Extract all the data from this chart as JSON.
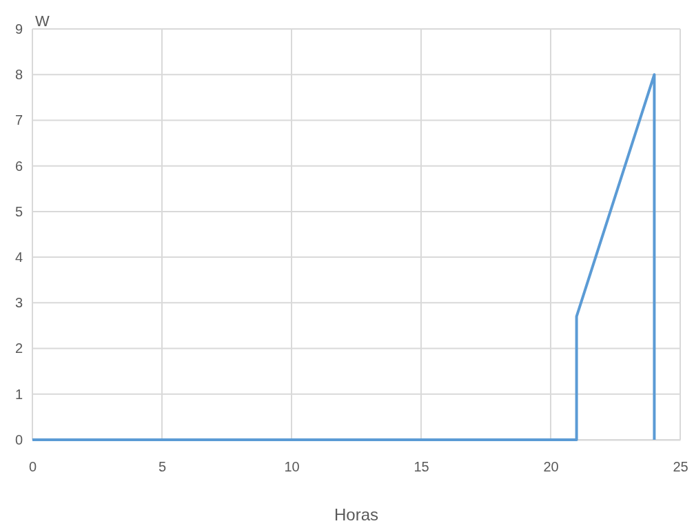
{
  "chart_data": {
    "type": "line",
    "xlabel": "Horas",
    "ylabel": "W",
    "series": [
      {
        "color": "#5b9bd5",
        "x": [
          0,
          21,
          21,
          24,
          24
        ],
        "values": [
          0,
          0,
          2.7,
          8,
          0
        ]
      }
    ],
    "xlim": [
      0,
      25
    ],
    "xticks": [
      0,
      5,
      10,
      15,
      20,
      25
    ],
    "ylim": [
      0,
      9
    ],
    "yticks": [
      0,
      1,
      2,
      3,
      4,
      5,
      6,
      7,
      8,
      9
    ],
    "grid": true,
    "marker": "none",
    "line_style": "solid"
  }
}
